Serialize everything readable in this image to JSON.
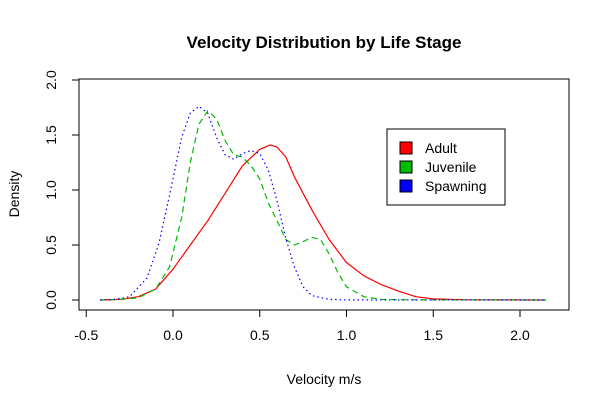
{
  "chart_data": {
    "type": "line",
    "title": "Velocity Distribution by Life Stage",
    "xlabel": "Velocity m/s",
    "ylabel": "Density",
    "xlim": [
      -0.5,
      2.2
    ],
    "ylim": [
      0,
      2.0
    ],
    "x_ticks": [
      "-0.5",
      "0.0",
      "0.5",
      "1.0",
      "1.5",
      "2.0"
    ],
    "y_ticks": [
      "0.0",
      "0.5",
      "1.0",
      "1.5",
      "2.0"
    ],
    "grid": false,
    "legend_position": "top-right",
    "series": [
      {
        "name": "Adult",
        "color": "#ff0000",
        "line_style": "solid",
        "points": [
          [
            -0.42,
            0
          ],
          [
            -0.3,
            0.005
          ],
          [
            -0.2,
            0.03
          ],
          [
            -0.1,
            0.1
          ],
          [
            0.0,
            0.28
          ],
          [
            0.1,
            0.5
          ],
          [
            0.2,
            0.72
          ],
          [
            0.3,
            0.97
          ],
          [
            0.4,
            1.22
          ],
          [
            0.5,
            1.37
          ],
          [
            0.56,
            1.41
          ],
          [
            0.6,
            1.39
          ],
          [
            0.65,
            1.3
          ],
          [
            0.7,
            1.12
          ],
          [
            0.8,
            0.82
          ],
          [
            0.9,
            0.55
          ],
          [
            1.0,
            0.34
          ],
          [
            1.1,
            0.22
          ],
          [
            1.2,
            0.14
          ],
          [
            1.3,
            0.08
          ],
          [
            1.4,
            0.03
          ],
          [
            1.5,
            0.01
          ],
          [
            1.7,
            0.002
          ],
          [
            1.9,
            0.001
          ],
          [
            2.15,
            0
          ]
        ]
      },
      {
        "name": "Juvenile",
        "color": "#00bb00",
        "line_style": "dashed",
        "points": [
          [
            -0.42,
            0
          ],
          [
            -0.3,
            0.005
          ],
          [
            -0.2,
            0.02
          ],
          [
            -0.1,
            0.1
          ],
          [
            -0.02,
            0.3
          ],
          [
            0.05,
            0.75
          ],
          [
            0.1,
            1.25
          ],
          [
            0.15,
            1.6
          ],
          [
            0.2,
            1.72
          ],
          [
            0.25,
            1.65
          ],
          [
            0.3,
            1.45
          ],
          [
            0.35,
            1.32
          ],
          [
            0.4,
            1.3
          ],
          [
            0.45,
            1.22
          ],
          [
            0.5,
            1.1
          ],
          [
            0.55,
            0.88
          ],
          [
            0.6,
            0.72
          ],
          [
            0.65,
            0.55
          ],
          [
            0.7,
            0.5
          ],
          [
            0.75,
            0.53
          ],
          [
            0.8,
            0.57
          ],
          [
            0.85,
            0.55
          ],
          [
            0.9,
            0.42
          ],
          [
            0.95,
            0.25
          ],
          [
            1.0,
            0.12
          ],
          [
            1.1,
            0.03
          ],
          [
            1.2,
            0.005
          ],
          [
            1.4,
            0.001
          ],
          [
            2.15,
            0
          ]
        ]
      },
      {
        "name": "Spawning",
        "color": "#0000ff",
        "line_style": "dotted",
        "points": [
          [
            -0.42,
            0
          ],
          [
            -0.35,
            0.003
          ],
          [
            -0.25,
            0.03
          ],
          [
            -0.15,
            0.2
          ],
          [
            -0.08,
            0.52
          ],
          [
            -0.02,
            0.95
          ],
          [
            0.05,
            1.48
          ],
          [
            0.1,
            1.7
          ],
          [
            0.15,
            1.76
          ],
          [
            0.2,
            1.7
          ],
          [
            0.25,
            1.48
          ],
          [
            0.3,
            1.32
          ],
          [
            0.35,
            1.28
          ],
          [
            0.4,
            1.33
          ],
          [
            0.45,
            1.36
          ],
          [
            0.5,
            1.33
          ],
          [
            0.55,
            1.18
          ],
          [
            0.6,
            0.9
          ],
          [
            0.65,
            0.56
          ],
          [
            0.7,
            0.3
          ],
          [
            0.75,
            0.12
          ],
          [
            0.8,
            0.04
          ],
          [
            0.9,
            0.005
          ],
          [
            1.0,
            0.001
          ],
          [
            2.15,
            0
          ]
        ]
      }
    ]
  }
}
